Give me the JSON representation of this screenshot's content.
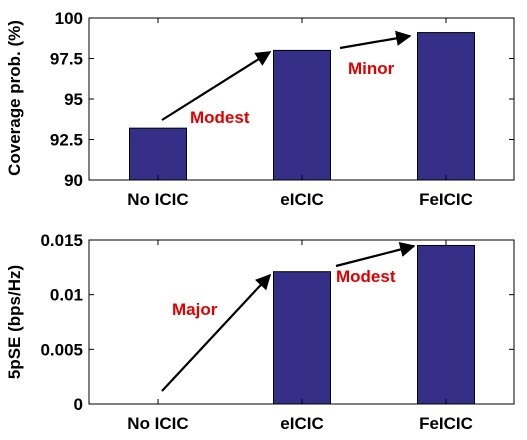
{
  "chart_data": [
    {
      "type": "bar",
      "categories": [
        "No ICIC",
        "eICIC",
        "FeICIC"
      ],
      "values": [
        93.2,
        98.0,
        99.1
      ],
      "title": "",
      "xlabel": "",
      "ylabel": "Coverage prob. (%)",
      "ylim": [
        90,
        100
      ],
      "yticks": [
        "90",
        "92.5",
        "95",
        "97.5",
        "100"
      ],
      "grid": false,
      "annotations": [
        {
          "text": "Modest",
          "from": "No ICIC",
          "to": "eICIC"
        },
        {
          "text": "Minor",
          "from": "eICIC",
          "to": "FeICIC"
        }
      ]
    },
    {
      "type": "bar",
      "categories": [
        "No ICIC",
        "eICIC",
        "FeICIC"
      ],
      "values": [
        0.0,
        0.0121,
        0.0145
      ],
      "title": "",
      "xlabel": "",
      "ylabel": "5pSE (bps/Hz)",
      "ylim": [
        0,
        0.015
      ],
      "yticks": [
        "0",
        "0.005",
        "0.01",
        "0.015"
      ],
      "grid": false,
      "annotations": [
        {
          "text": "Major",
          "from": "No ICIC",
          "to": "eICIC"
        },
        {
          "text": "Modest",
          "from": "eICIC",
          "to": "FeICIC"
        }
      ]
    }
  ],
  "colors": {
    "bar": "#352f88",
    "annotation": "#e00000",
    "arrow": "#000000"
  }
}
